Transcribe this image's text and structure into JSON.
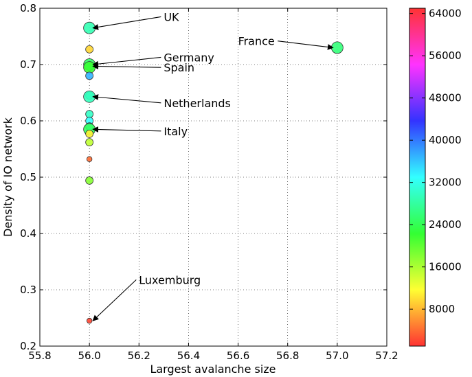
{
  "chart_data": {
    "type": "scatter",
    "title": "",
    "xlabel": "Largest avalanche size",
    "ylabel": "Density of IO network",
    "xlim": [
      55.8,
      57.2
    ],
    "ylim": [
      0.2,
      0.8
    ],
    "xticks": [
      55.8,
      56.0,
      56.2,
      56.4,
      56.6,
      56.8,
      57.0,
      57.2
    ],
    "xtick_labels": [
      "55.8",
      "56.0",
      "56.2",
      "56.4",
      "56.6",
      "56.8",
      "57.0",
      "57.2"
    ],
    "yticks": [
      0.2,
      0.3,
      0.4,
      0.5,
      0.6,
      0.7,
      0.8
    ],
    "ytick_labels": [
      "0.2",
      "0.3",
      "0.4",
      "0.5",
      "0.6",
      "0.7",
      "0.8"
    ],
    "grid": true,
    "colorbar": {
      "colormap": "hsv",
      "range": [
        1000,
        65000
      ],
      "ticks": [
        8000,
        16000,
        24000,
        32000,
        40000,
        48000,
        56000,
        64000
      ],
      "tick_labels": [
        "8000",
        "16000",
        "24000",
        "32000",
        "40000",
        "48000",
        "56000",
        "64000"
      ]
    },
    "points": [
      {
        "x": 56.0,
        "y": 0.765,
        "value": 29000,
        "size": "large"
      },
      {
        "x": 56.0,
        "y": 0.727,
        "value": 9500,
        "size": "small"
      },
      {
        "x": 56.0,
        "y": 0.7,
        "value": 25000,
        "size": "large"
      },
      {
        "x": 56.0,
        "y": 0.695,
        "value": 22000,
        "size": "large"
      },
      {
        "x": 56.0,
        "y": 0.68,
        "value": 37000,
        "size": "small"
      },
      {
        "x": 56.0,
        "y": 0.645,
        "value": 30000,
        "size": "small"
      },
      {
        "x": 56.0,
        "y": 0.643,
        "value": 29500,
        "size": "large"
      },
      {
        "x": 56.0,
        "y": 0.612,
        "value": 30000,
        "size": "small"
      },
      {
        "x": 56.0,
        "y": 0.6,
        "value": 33000,
        "size": "small"
      },
      {
        "x": 56.0,
        "y": 0.59,
        "value": 31000,
        "size": "small"
      },
      {
        "x": 56.0,
        "y": 0.585,
        "value": 24500,
        "size": "large"
      },
      {
        "x": 56.0,
        "y": 0.577,
        "value": 11000,
        "size": "small"
      },
      {
        "x": 56.0,
        "y": 0.562,
        "value": 15000,
        "size": "small"
      },
      {
        "x": 56.0,
        "y": 0.532,
        "value": 4000,
        "size": "tiny"
      },
      {
        "x": 56.0,
        "y": 0.494,
        "value": 18000,
        "size": "small"
      },
      {
        "x": 56.0,
        "y": 0.245,
        "value": 2000,
        "size": "tiny"
      },
      {
        "x": 57.0,
        "y": 0.73,
        "value": 26000,
        "size": "large"
      }
    ],
    "annotations": [
      {
        "text": "UK",
        "x": 56.0,
        "y": 0.765,
        "text_x": 56.3,
        "text_y": 0.78
      },
      {
        "text": "France",
        "x": 57.0,
        "y": 0.73,
        "text_x": 56.6,
        "text_y": 0.737
      },
      {
        "text": "Germany",
        "x": 56.0,
        "y": 0.7,
        "text_x": 56.3,
        "text_y": 0.708
      },
      {
        "text": "Spain",
        "x": 56.0,
        "y": 0.697,
        "text_x": 56.3,
        "text_y": 0.69
      },
      {
        "text": "Netherlands",
        "x": 56.0,
        "y": 0.643,
        "text_x": 56.3,
        "text_y": 0.627
      },
      {
        "text": "Italy",
        "x": 56.0,
        "y": 0.585,
        "text_x": 56.3,
        "text_y": 0.577
      },
      {
        "text": "Luxemburg",
        "x": 56.0,
        "y": 0.245,
        "text_x": 56.2,
        "text_y": 0.313
      }
    ]
  }
}
